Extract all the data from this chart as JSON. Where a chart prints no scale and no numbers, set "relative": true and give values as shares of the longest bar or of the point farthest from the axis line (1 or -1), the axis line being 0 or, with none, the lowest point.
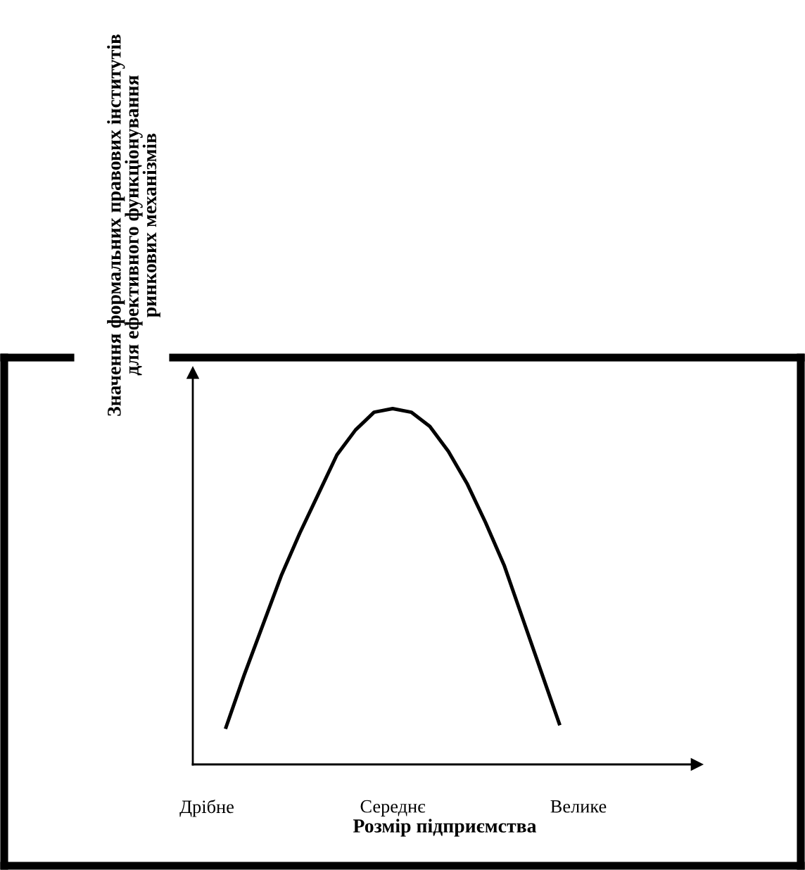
{
  "chart_data": {
    "type": "line",
    "relative": true,
    "xlabel": "Розмір підприємства",
    "ylabel": "Значення формальних правових інститутів\nдля ефективного функціонування\nринкових механізмів",
    "categories": [
      "Дрібне",
      null,
      null,
      null,
      null,
      null,
      null,
      null,
      null,
      null,
      "Середнє",
      null,
      null,
      null,
      null,
      null,
      null,
      null,
      null,
      null,
      "Велике"
    ],
    "series": [
      {
        "color": "#000000",
        "values": [
          null,
          0.1,
          0.25,
          0.39,
          0.53,
          0.65,
          0.76,
          0.87,
          0.94,
          0.99,
          1.0,
          0.99,
          0.95,
          0.88,
          0.79,
          0.68,
          0.56,
          0.41,
          0.26,
          0.11,
          null
        ]
      }
    ],
    "marker": "none",
    "line_style": "solid",
    "grid": false,
    "legend": false
  }
}
